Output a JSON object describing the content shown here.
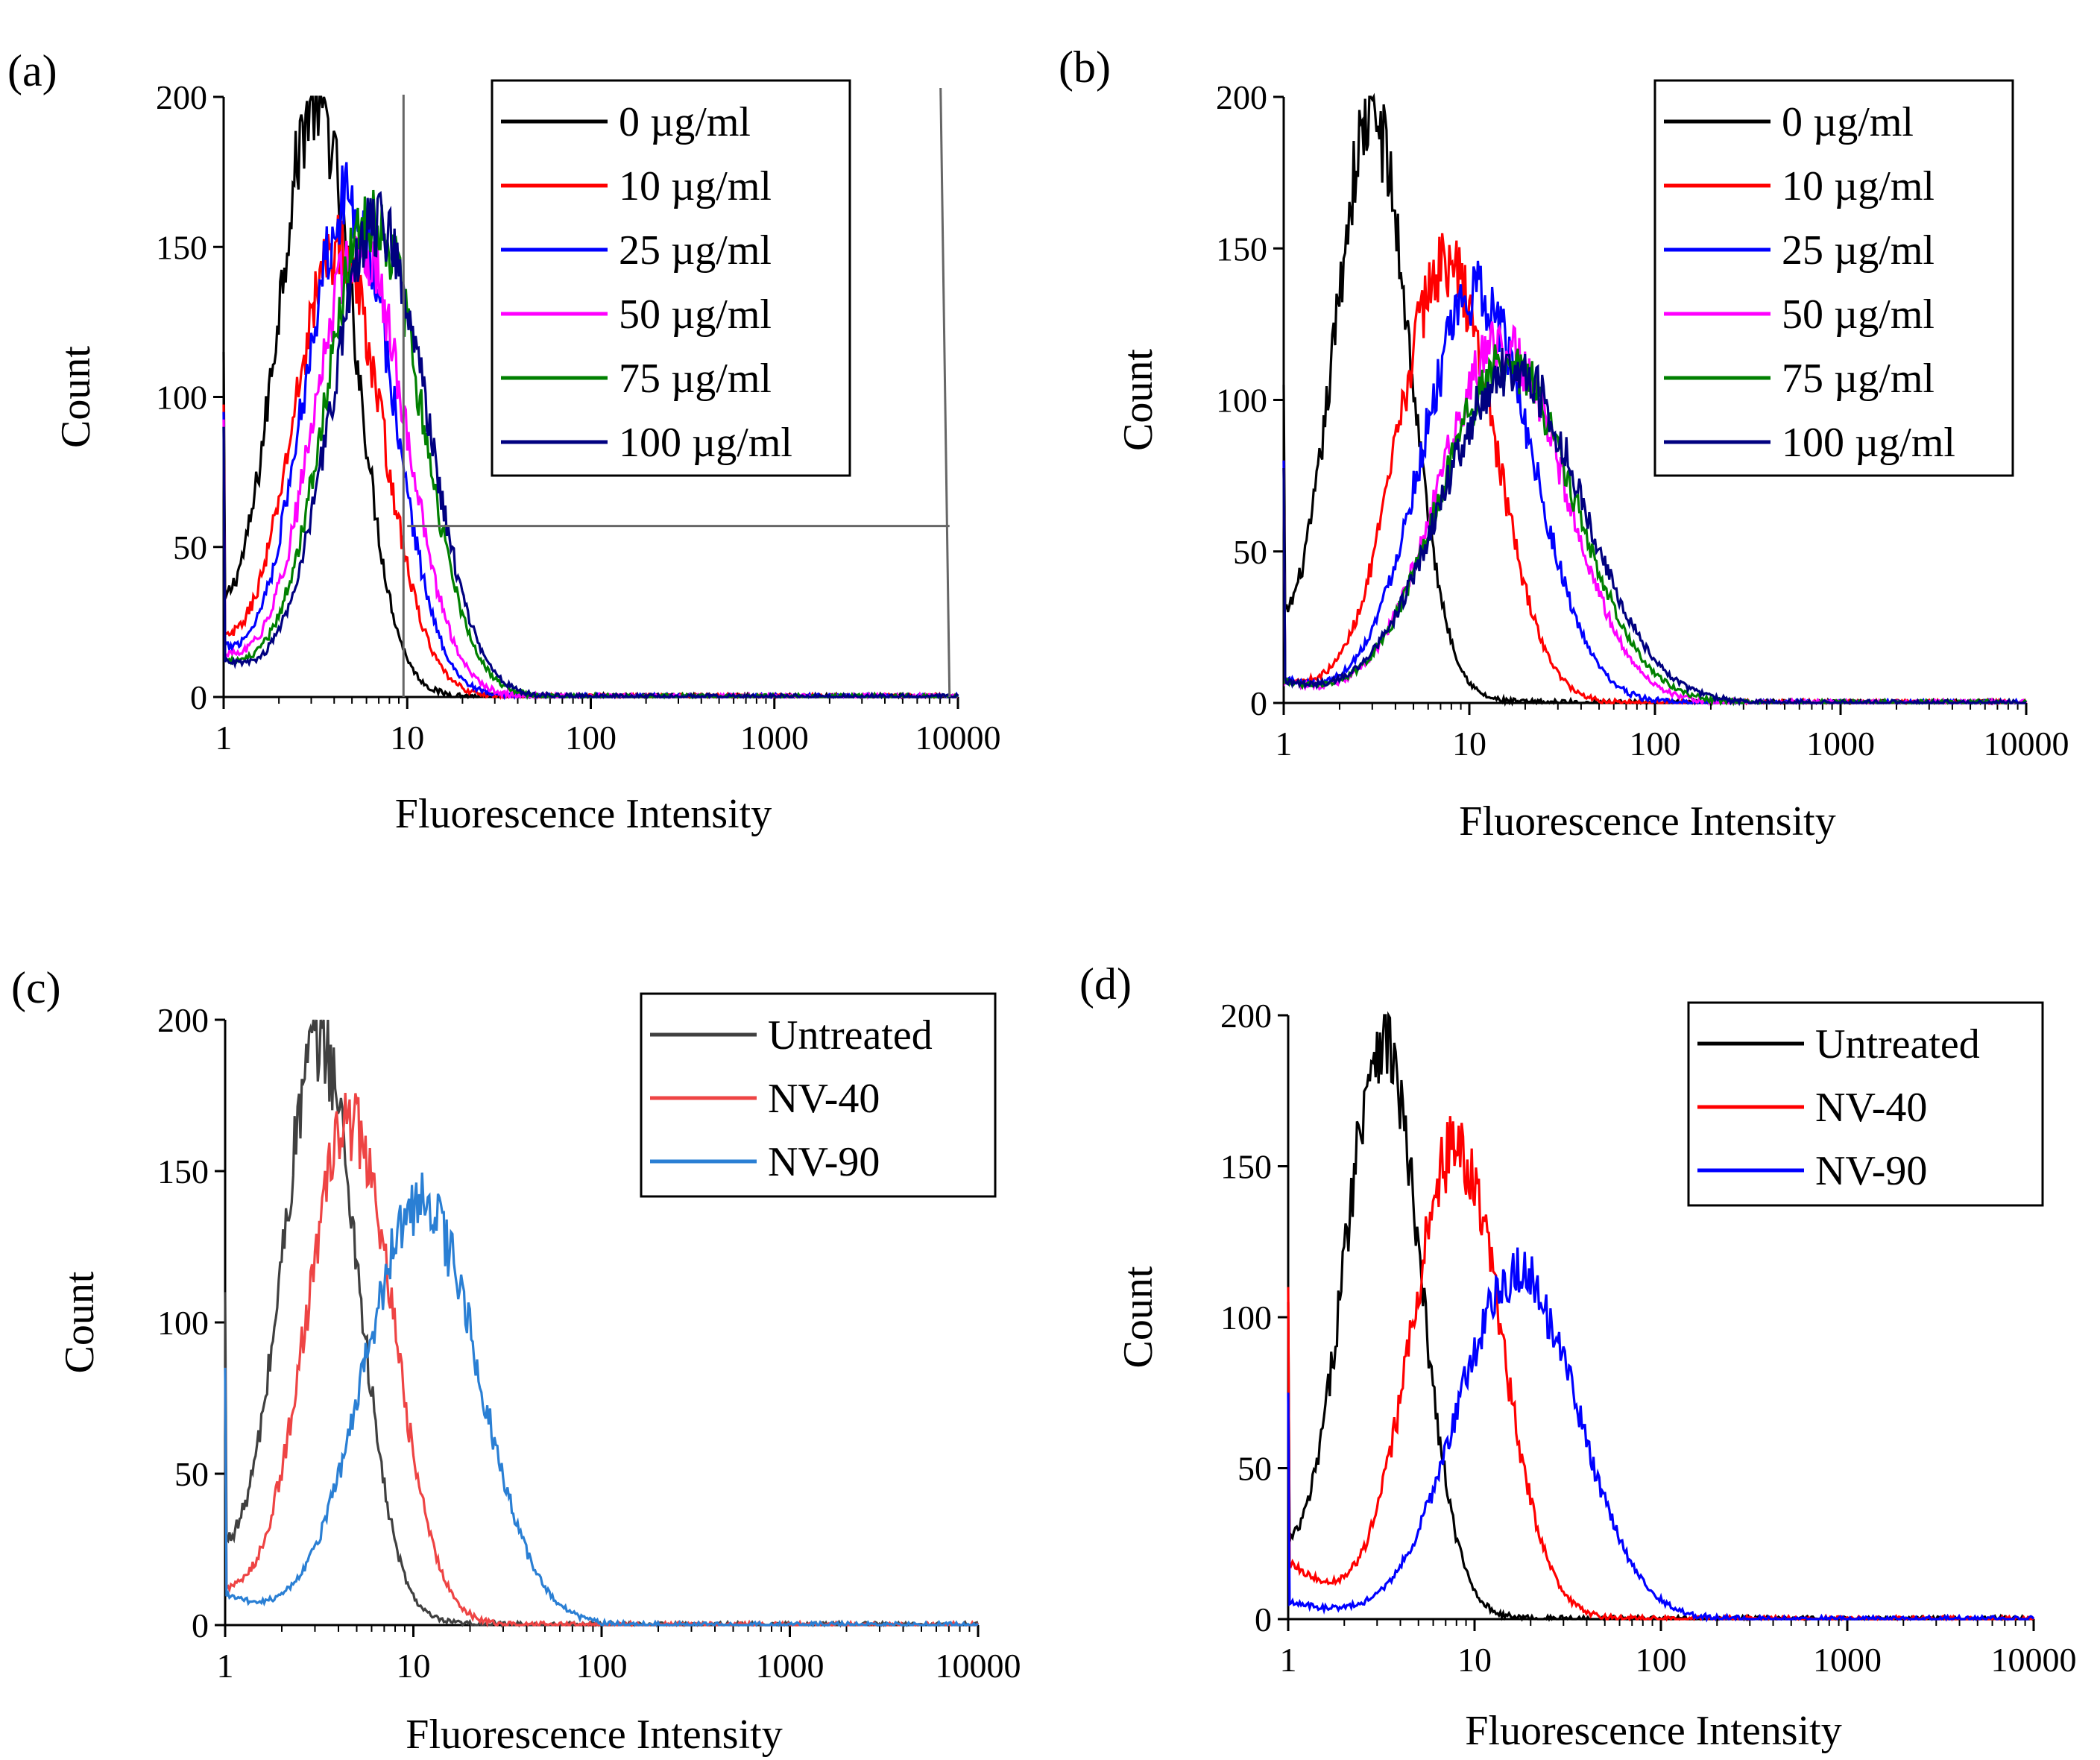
{
  "figure": {
    "panels": [
      {
        "label": "(a)",
        "legend_entries": [
          "0 µg/ml",
          "10 µg/ml",
          "25 µg/ml",
          "50 µg/ml",
          "75 µg/ml",
          "100 µg/ml"
        ],
        "gate_lines": true
      },
      {
        "label": "(b)",
        "legend_entries": [
          "0 µg/ml",
          "10 µg/ml",
          "25 µg/ml",
          "50 µg/ml",
          "75 µg/ml",
          "100 µg/ml"
        ],
        "gate_lines": false
      },
      {
        "label": "(c)",
        "legend_entries": [
          "Untreated",
          "NV-40",
          "NV-90"
        ],
        "gate_lines": false
      },
      {
        "label": "(d)",
        "legend_entries": [
          "Untreated",
          "NV-40",
          "NV-90"
        ],
        "gate_lines": false
      }
    ]
  },
  "colors": {
    "black": "#000000",
    "red": "#ff0000",
    "blue": "#0000ff",
    "magenta": "#ff00ff",
    "green": "#008000",
    "navy": "#000080",
    "gray": "#404040",
    "light_red": "#ee4444",
    "light_blue": "#2a7fd4"
  },
  "chart_data": [
    {
      "panel": "(a)",
      "type": "line",
      "xlabel": "Fluorescence Intensity",
      "ylabel": "Count",
      "xscale": "log",
      "xlim": [
        1,
        10000
      ],
      "ylim": [
        0,
        200
      ],
      "xticks": [
        "1",
        "10",
        "100",
        "1000",
        "10000"
      ],
      "yticks": [
        "0",
        "50",
        "100",
        "150",
        "200"
      ],
      "legend_position": "top-right",
      "series": [
        {
          "name": "0 µg/ml",
          "color": "#000000",
          "peak_x": 3.2,
          "peak_y": 195,
          "width_decades": 0.21,
          "baseline": 22
        },
        {
          "name": "10 µg/ml",
          "color": "#ff0000",
          "peak_x": 4.2,
          "peak_y": 148,
          "width_decades": 0.24,
          "baseline": 15
        },
        {
          "name": "25 µg/ml",
          "color": "#0000ff",
          "peak_x": 4.8,
          "peak_y": 165,
          "width_decades": 0.24,
          "baseline": 14
        },
        {
          "name": "50 µg/ml",
          "color": "#ff00ff",
          "peak_x": 5.5,
          "peak_y": 150,
          "width_decades": 0.25,
          "baseline": 13
        },
        {
          "name": "75 µg/ml",
          "color": "#008000",
          "peak_x": 6.5,
          "peak_y": 160,
          "width_decades": 0.26,
          "baseline": 12
        },
        {
          "name": "100 µg/ml",
          "color": "#000080",
          "peak_x": 7.0,
          "peak_y": 158,
          "width_decades": 0.26,
          "baseline": 12
        }
      ],
      "gate": {
        "x_start": 10,
        "x_end": 9000,
        "y": 57
      }
    },
    {
      "panel": "(b)",
      "type": "line",
      "xlabel": "Fluorescence Intensity",
      "ylabel": "Count",
      "xscale": "log",
      "xlim": [
        1,
        10000
      ],
      "ylim": [
        0,
        200
      ],
      "xticks": [
        "1",
        "10",
        "100",
        "1000",
        "10000"
      ],
      "yticks": [
        "0",
        "50",
        "100",
        "150",
        "200"
      ],
      "legend_position": "top-right",
      "series": [
        {
          "name": "0 µg/ml",
          "color": "#000000",
          "peak_x": 3.0,
          "peak_y": 190,
          "width_decades": 0.2,
          "baseline": 18
        },
        {
          "name": "10 µg/ml",
          "color": "#ff0000",
          "peak_x": 7.5,
          "peak_y": 145,
          "width_decades": 0.26,
          "baseline": 8
        },
        {
          "name": "25 µg/ml",
          "color": "#0000ff",
          "peak_x": 11,
          "peak_y": 135,
          "width_decades": 0.3,
          "baseline": 8
        },
        {
          "name": "50 µg/ml",
          "color": "#ff00ff",
          "peak_x": 15,
          "peak_y": 118,
          "width_decades": 0.34,
          "baseline": 7
        },
        {
          "name": "75 µg/ml",
          "color": "#008000",
          "peak_x": 16,
          "peak_y": 112,
          "width_decades": 0.36,
          "baseline": 7
        },
        {
          "name": "100 µg/ml",
          "color": "#000080",
          "peak_x": 17,
          "peak_y": 110,
          "width_decades": 0.38,
          "baseline": 7
        }
      ]
    },
    {
      "panel": "(c)",
      "type": "line",
      "xlabel": "Fluorescence Intensity",
      "ylabel": "Count",
      "xscale": "log",
      "xlim": [
        1,
        10000
      ],
      "ylim": [
        0,
        200
      ],
      "xticks": [
        "1",
        "10",
        "100",
        "1000",
        "10000"
      ],
      "yticks": [
        "0",
        "50",
        "100",
        "150",
        "200"
      ],
      "legend_position": "top-right",
      "series": [
        {
          "name": "Untreated",
          "color": "#404040",
          "peak_x": 3.2,
          "peak_y": 190,
          "width_decades": 0.2,
          "baseline": 20
        },
        {
          "name": "NV-40",
          "color": "#ee4444",
          "peak_x": 4.6,
          "peak_y": 165,
          "width_decades": 0.23,
          "baseline": 10
        },
        {
          "name": "NV-90",
          "color": "#2a7fd4",
          "peak_x": 11,
          "peak_y": 140,
          "width_decades": 0.3,
          "baseline": 10
        }
      ]
    },
    {
      "panel": "(d)",
      "type": "line",
      "xlabel": "Fluorescence Intensity",
      "ylabel": "Count",
      "xscale": "log",
      "xlim": [
        1,
        10000
      ],
      "ylim": [
        0,
        200
      ],
      "xticks": [
        "1",
        "10",
        "100",
        "1000",
        "10000"
      ],
      "yticks": [
        "0",
        "50",
        "100",
        "150",
        "200"
      ],
      "legend_position": "top-right",
      "series": [
        {
          "name": "Untreated",
          "color": "#000000",
          "peak_x": 3.2,
          "peak_y": 190,
          "width_decades": 0.2,
          "baseline": 18
        },
        {
          "name": "NV-40",
          "color": "#ff0000",
          "peak_x": 8.0,
          "peak_y": 155,
          "width_decades": 0.24,
          "baseline": 20
        },
        {
          "name": "NV-90",
          "color": "#0000ff",
          "peak_x": 17,
          "peak_y": 115,
          "width_decades": 0.32,
          "baseline": 6
        }
      ]
    }
  ]
}
